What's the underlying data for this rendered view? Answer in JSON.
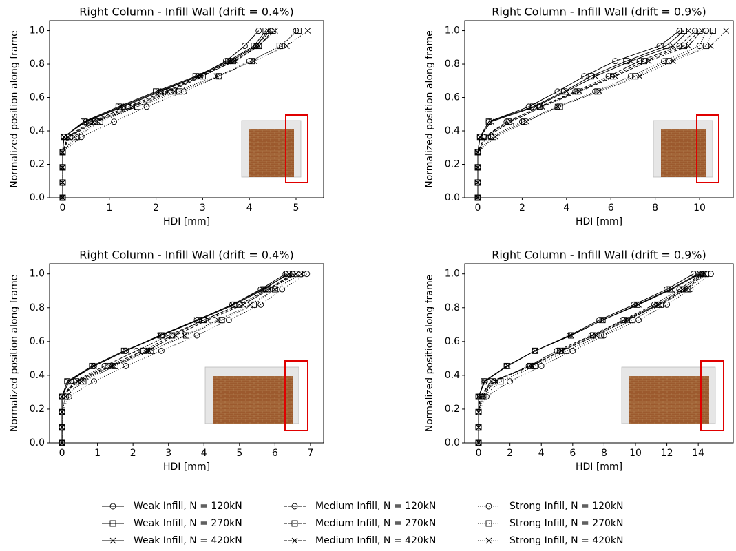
{
  "chart_data": [
    {
      "type": "line",
      "title": "Right Column - Infill Wall (drift = 0.4%)",
      "xlabel": "HDI [mm]",
      "ylabel": "Normalized position along frame",
      "xlim": [
        -0.28,
        5.59
      ],
      "xticks": [
        0,
        1,
        2,
        3,
        4,
        5
      ],
      "ylim": [
        0,
        1.06
      ],
      "yticks": [
        {
          "value": 0,
          "label": "0.0"
        },
        0.2,
        0.4,
        0.6,
        0.8,
        {
          "value": 1,
          "label": "1.0"
        }
      ],
      "y": [
        0,
        0.091,
        0.182,
        0.273,
        0.364,
        0.455,
        0.545,
        0.636,
        0.727,
        0.818,
        0.909,
        1.0
      ],
      "series": [
        {
          "x": [
            0,
            0,
            0,
            0,
            0.02,
            0.5,
            1.3,
            2.1,
            2.9,
            3.5,
            3.9,
            4.2
          ]
        },
        {
          "x": [
            0,
            0,
            0,
            0,
            0.03,
            0.45,
            1.2,
            2.0,
            2.85,
            3.55,
            4.1,
            4.35
          ]
        },
        {
          "x": [
            0,
            0,
            0,
            0,
            0.03,
            0.48,
            1.25,
            2.05,
            2.9,
            3.6,
            4.15,
            4.4
          ]
        },
        {
          "x": [
            0,
            0,
            0,
            0,
            0.1,
            0.6,
            1.4,
            2.2,
            2.95,
            3.6,
            4.15,
            4.45
          ]
        },
        {
          "x": [
            0,
            0,
            0,
            0,
            0.15,
            0.7,
            1.6,
            2.3,
            3.0,
            3.65,
            4.2,
            4.5
          ]
        },
        {
          "x": [
            0,
            0,
            0,
            0,
            0.12,
            0.65,
            1.5,
            2.25,
            2.95,
            3.7,
            4.2,
            4.55
          ]
        },
        {
          "x": [
            0,
            0,
            0,
            0,
            0.4,
            1.1,
            1.8,
            2.6,
            3.35,
            4.0,
            4.7,
            5.0
          ]
        },
        {
          "x": [
            0,
            0,
            0,
            0,
            0.3,
            0.8,
            1.6,
            2.5,
            3.35,
            4.05,
            4.65,
            5.05
          ]
        },
        {
          "x": [
            0,
            0,
            0,
            0,
            0.25,
            0.75,
            1.5,
            2.4,
            3.3,
            4.1,
            4.8,
            5.25
          ]
        }
      ]
    },
    {
      "type": "line",
      "title": "Right Column - Infill Wall (drift = 0.9%)",
      "xlabel": "HDI [mm]",
      "ylabel": "Normalized position along frame",
      "xlim": [
        -0.59,
        11.52
      ],
      "xticks": [
        0,
        2,
        4,
        6,
        8,
        10
      ],
      "ylim": [
        0,
        1.06
      ],
      "yticks": [
        {
          "value": 0,
          "label": "0.0"
        },
        0.2,
        0.4,
        0.6,
        0.8,
        {
          "value": 1,
          "label": "1.0"
        }
      ],
      "y": [
        0,
        0.091,
        0.182,
        0.273,
        0.364,
        0.455,
        0.545,
        0.636,
        0.727,
        0.818,
        0.909,
        1.0
      ],
      "series": [
        {
          "x": [
            0,
            0,
            0,
            0,
            0.1,
            0.5,
            2.3,
            3.6,
            4.8,
            6.2,
            8.2,
            9.1
          ]
        },
        {
          "x": [
            0,
            0,
            0,
            0,
            0.1,
            0.5,
            2.5,
            3.9,
            5.1,
            6.7,
            8.5,
            9.3
          ]
        },
        {
          "x": [
            0,
            0,
            0,
            0,
            0.1,
            0.6,
            2.6,
            4.0,
            5.3,
            6.9,
            8.8,
            9.5
          ]
        },
        {
          "x": [
            0,
            0,
            0,
            0,
            0.3,
            1.3,
            2.8,
            4.4,
            5.9,
            7.3,
            9.1,
            9.8
          ]
        },
        {
          "x": [
            0,
            0,
            0,
            0,
            0.3,
            1.4,
            2.8,
            4.5,
            6.1,
            7.5,
            9.3,
            10.0
          ]
        },
        {
          "x": [
            0,
            0,
            0,
            0,
            0.4,
            1.5,
            2.9,
            4.6,
            6.2,
            7.7,
            9.5,
            10.1
          ]
        },
        {
          "x": [
            0,
            0,
            0,
            0,
            0.6,
            2.0,
            3.6,
            5.3,
            6.9,
            8.4,
            10.0,
            10.3
          ]
        },
        {
          "x": [
            0,
            0,
            0,
            0,
            0.7,
            2.1,
            3.7,
            5.4,
            7.1,
            8.6,
            10.3,
            10.6
          ]
        },
        {
          "x": [
            0,
            0,
            0,
            0,
            0.8,
            2.2,
            3.6,
            5.5,
            7.3,
            8.8,
            10.5,
            11.2
          ]
        }
      ]
    },
    {
      "type": "line",
      "title": "Right Column - Infill Wall (drift = 0.4%)",
      "xlabel": "HDI [mm]",
      "ylabel": "Normalized position along frame",
      "xlim": [
        -0.35,
        7.37
      ],
      "xticks": [
        0,
        1,
        2,
        3,
        4,
        5,
        6,
        7
      ],
      "ylim": [
        0,
        1.06
      ],
      "yticks": [
        {
          "value": 0,
          "label": "0.0"
        },
        0.2,
        0.4,
        0.6,
        0.8,
        {
          "value": 1,
          "label": "1.0"
        }
      ],
      "y": [
        0,
        0.091,
        0.182,
        0.273,
        0.364,
        0.455,
        0.545,
        0.636,
        0.727,
        0.818,
        0.909,
        1.0
      ],
      "series": [
        {
          "x": [
            0,
            0,
            0,
            0,
            0.15,
            0.9,
            1.8,
            2.8,
            3.8,
            4.8,
            5.6,
            6.3
          ]
        },
        {
          "x": [
            0,
            0,
            0,
            0,
            0.15,
            0.85,
            1.75,
            2.8,
            3.85,
            4.85,
            5.7,
            6.35
          ]
        },
        {
          "x": [
            0,
            0,
            0,
            0,
            0.2,
            0.9,
            1.8,
            2.75,
            3.8,
            4.8,
            5.65,
            6.4
          ]
        },
        {
          "x": [
            0,
            0,
            0,
            0,
            0.35,
            1.2,
            2.1,
            3.0,
            4.0,
            5.0,
            5.8,
            6.5
          ]
        },
        {
          "x": [
            0,
            0,
            0,
            0,
            0.4,
            1.3,
            2.3,
            3.1,
            4.0,
            5.0,
            5.8,
            6.55
          ]
        },
        {
          "x": [
            0,
            0,
            0,
            0,
            0.45,
            1.4,
            2.4,
            3.2,
            4.1,
            5.1,
            5.85,
            6.6
          ]
        },
        {
          "x": [
            0,
            0,
            0,
            0.2,
            0.9,
            1.8,
            2.8,
            3.8,
            4.7,
            5.6,
            6.2,
            6.9
          ]
        },
        {
          "x": [
            0,
            0,
            0,
            0.1,
            0.6,
            1.5,
            2.5,
            3.5,
            4.5,
            5.4,
            6.0,
            6.7
          ]
        },
        {
          "x": [
            0,
            0,
            0,
            0.1,
            0.55,
            1.45,
            2.45,
            3.45,
            4.4,
            5.3,
            6.0,
            6.75
          ]
        }
      ]
    },
    {
      "type": "line",
      "title": "Right Column - Infill Wall (drift = 0.9%)",
      "xlabel": "HDI [mm]",
      "ylabel": "Normalized position along frame",
      "xlim": [
        -0.88,
        16.23
      ],
      "xticks": [
        0,
        2,
        4,
        6,
        8,
        10,
        12,
        14
      ],
      "ylim": [
        0,
        1.06
      ],
      "yticks": [
        {
          "value": 0,
          "label": "0.0"
        },
        0.2,
        0.4,
        0.6,
        0.8,
        {
          "value": 1,
          "label": "1.0"
        }
      ],
      "y": [
        0,
        0.091,
        0.182,
        0.273,
        0.364,
        0.455,
        0.545,
        0.636,
        0.727,
        0.818,
        0.909,
        1.0
      ],
      "series": [
        {
          "x": [
            0,
            0,
            0,
            0,
            0.4,
            1.8,
            3.6,
            5.8,
            7.7,
            9.9,
            12.0,
            13.7
          ]
        },
        {
          "x": [
            0,
            0,
            0,
            0,
            0.35,
            1.8,
            3.6,
            5.9,
            7.9,
            10.1,
            12.2,
            14.0
          ]
        },
        {
          "x": [
            0,
            0,
            0,
            0,
            0.4,
            1.85,
            3.6,
            5.9,
            7.9,
            10.2,
            12.3,
            14.1
          ]
        },
        {
          "x": [
            0,
            0,
            0,
            0.2,
            1.0,
            3.2,
            5.0,
            7.2,
            9.2,
            11.2,
            12.8,
            14.2
          ]
        },
        {
          "x": [
            0,
            0,
            0,
            0.1,
            0.9,
            3.3,
            5.2,
            7.3,
            9.3,
            11.4,
            13.0,
            14.3
          ]
        },
        {
          "x": [
            0,
            0,
            0,
            0.1,
            0.8,
            3.4,
            5.3,
            7.5,
            9.5,
            11.5,
            13.2,
            14.4
          ]
        },
        {
          "x": [
            0,
            0,
            0,
            0.5,
            2.0,
            4.0,
            6.0,
            8.0,
            10.2,
            12.0,
            13.5,
            14.8
          ]
        },
        {
          "x": [
            0,
            0,
            0,
            0.3,
            1.4,
            3.6,
            5.6,
            7.8,
            9.8,
            11.6,
            13.3,
            14.5
          ]
        },
        {
          "x": [
            0,
            0,
            0,
            0.2,
            1.1,
            3.3,
            5.3,
            7.5,
            9.4,
            11.4,
            13.0,
            14.3
          ]
        }
      ]
    }
  ],
  "legend": {
    "entries": [
      {
        "name": "Weak Infill, N = 120kN",
        "marker": "o",
        "dash": "solid",
        "color": "#000000"
      },
      {
        "name": "Weak Infill, N = 270kN",
        "marker": "s",
        "dash": "solid",
        "color": "#000000"
      },
      {
        "name": "Weak Infill, N = 420kN",
        "marker": "x",
        "dash": "solid",
        "color": "#000000"
      },
      {
        "name": "Medium Infill, N = 120kN",
        "marker": "o",
        "dash": "dashed",
        "color": "#000000"
      },
      {
        "name": "Medium Infill, N = 270kN",
        "marker": "s",
        "dash": "dashed",
        "color": "#000000"
      },
      {
        "name": "Medium Infill, N = 420kN",
        "marker": "x",
        "dash": "dashed",
        "color": "#000000"
      },
      {
        "name": "Strong Infill, N = 120kN",
        "marker": "o",
        "dash": "dotted",
        "color": "#000000"
      },
      {
        "name": "Strong Infill, N = 270kN",
        "marker": "s",
        "dash": "dotted",
        "color": "#000000"
      },
      {
        "name": "Strong Infill, N = 420kN",
        "marker": "x",
        "dash": "dotted",
        "color": "#000000"
      }
    ]
  }
}
